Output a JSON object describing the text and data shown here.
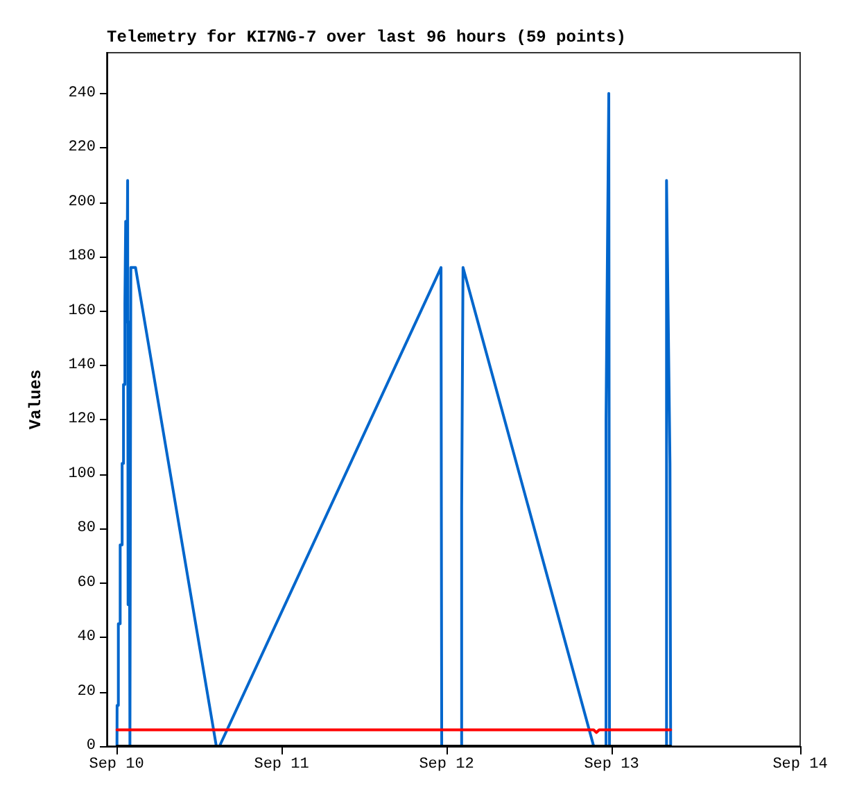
{
  "chart_data": {
    "type": "line",
    "title": "Telemetry for KI7NG-7 over last 96 hours (59 points)",
    "ylabel": "Values",
    "xlim": [
      "--09-09T22:35",
      "--09-14T03:26"
    ],
    "xticks": [
      {
        "value": "--09-10T00:00",
        "label": "Sep 10"
      },
      {
        "value": "--09-11T00:00",
        "label": "Sep 11"
      },
      {
        "value": "--09-12T00:00",
        "label": "Sep 12"
      },
      {
        "value": "--09-13T00:00",
        "label": "Sep 13"
      },
      {
        "value": "--09-14T03:26",
        "label": "Sep 14"
      }
    ],
    "ylim": [
      0,
      255
    ],
    "yticks": [
      0,
      20,
      40,
      60,
      80,
      100,
      120,
      140,
      160,
      180,
      200,
      220,
      240
    ],
    "grid": false,
    "marker": "none",
    "line_style": "solid",
    "series": [
      {
        "color": "#0066cc",
        "x": [
          "--09-10T00:04",
          "--09-10T00:05",
          "--09-10T00:16",
          "--09-10T00:16",
          "--09-10T00:32",
          "--09-10T00:32",
          "--09-10T00:49",
          "--09-10T00:49",
          "--09-10T01:01",
          "--09-10T01:01",
          "--09-10T01:13",
          "--09-10T01:13",
          "--09-10T01:20",
          "--09-10T01:20",
          "--09-10T01:29",
          "--09-10T01:37",
          "--09-10T01:41",
          "--09-10T01:49",
          "--09-10T01:57",
          "--09-10T02:05",
          "--09-10T02:46",
          "--09-10T14:31",
          "--09-10T14:59",
          "--09-11T23:12",
          "--09-11T23:18",
          "--09-12T02:12",
          "--09-12T02:12",
          "--09-12T02:24",
          "--09-12T21:24",
          "--09-12T23:12",
          "--09-12T23:12",
          "--09-12T23:36",
          "--09-12T23:42",
          "--09-13T08:00",
          "--09-13T08:00",
          "--09-13T08:30",
          "--09-13T08:36"
        ],
        "values": [
          0,
          15,
          15,
          45,
          45,
          74,
          74,
          104,
          104,
          133,
          133,
          163,
          163,
          193,
          156,
          208,
          52,
          156,
          0,
          176,
          176,
          0,
          0,
          176,
          0,
          0,
          88,
          176,
          0,
          0,
          120,
          240,
          0,
          0,
          208,
          104,
          0
        ]
      },
      {
        "color": "#ff0000",
        "x": [
          "--09-10T00:04",
          "--09-12T21:24",
          "--09-12T21:48",
          "--09-12T22:12",
          "--09-13T08:36"
        ],
        "values": [
          6,
          6,
          5,
          6,
          6
        ]
      },
      {
        "color": "#000000",
        "x": [
          "--09-10T00:04",
          "--09-13T08:36"
        ],
        "values": [
          0,
          0
        ]
      }
    ]
  }
}
